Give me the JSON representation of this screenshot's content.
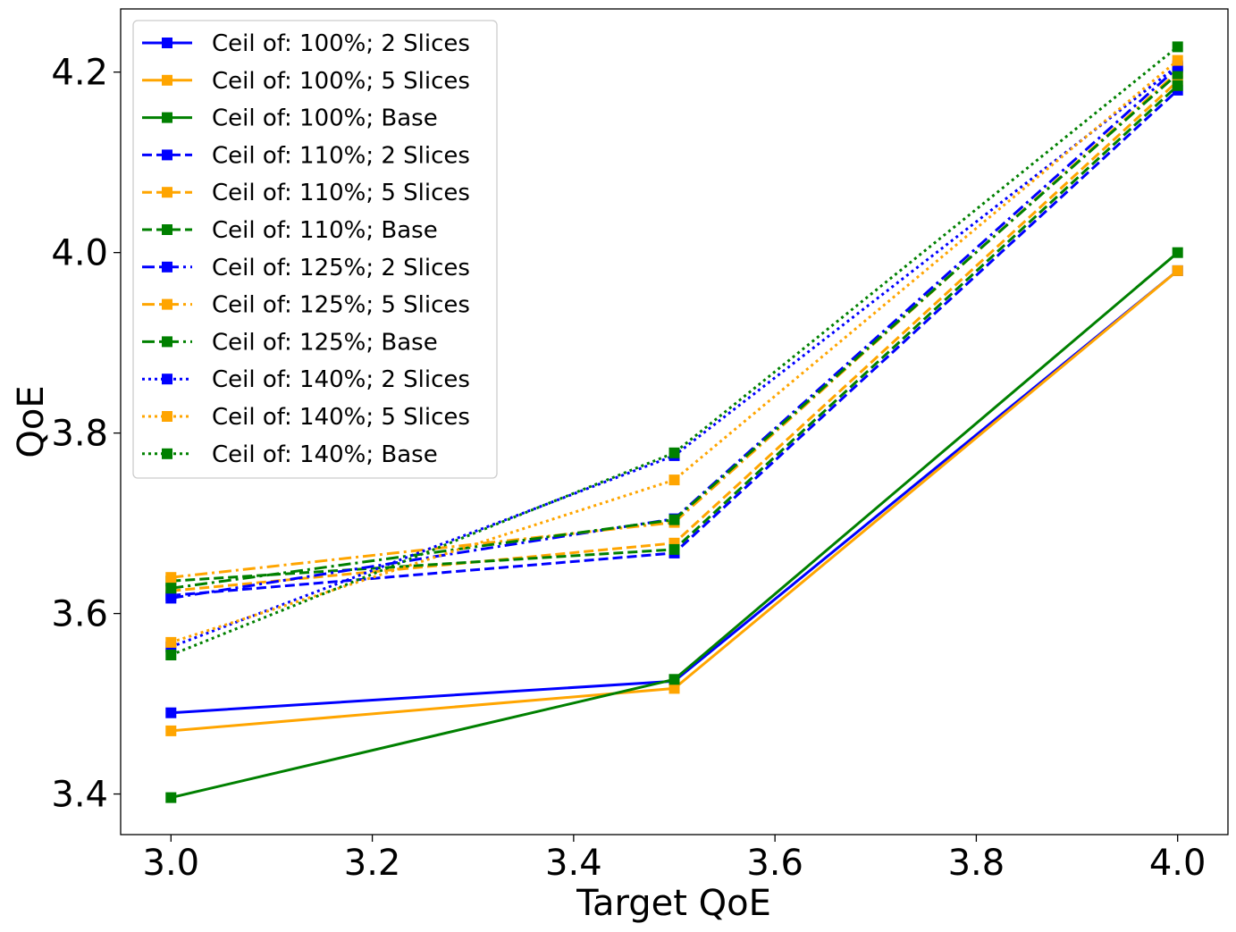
{
  "chart_data": {
    "type": "line",
    "xlabel": "Target QoE",
    "ylabel": "QoE",
    "xlim": [
      2.95,
      4.05
    ],
    "ylim": [
      3.355,
      4.27
    ],
    "xticks": [
      "3.0",
      "3.2",
      "3.4",
      "3.6",
      "3.8",
      "4.0"
    ],
    "yticks": [
      "3.4",
      "3.6",
      "3.8",
      "4.0",
      "4.2"
    ],
    "grid": false,
    "legend_position": "upper-left",
    "x": [
      3.0,
      3.5,
      4.0
    ],
    "series": [
      {
        "name": "Ceil of: 100%; 2 Slices",
        "color": "#0000ff",
        "linestyle": "solid",
        "marker": "square",
        "values": [
          3.49,
          3.525,
          3.98
        ]
      },
      {
        "name": "Ceil of: 100%; 5 Slices",
        "color": "#ffa500",
        "linestyle": "solid",
        "marker": "square",
        "values": [
          3.47,
          3.517,
          3.98
        ]
      },
      {
        "name": "Ceil of: 100%; Base",
        "color": "#008000",
        "linestyle": "solid",
        "marker": "square",
        "values": [
          3.396,
          3.527,
          4.0
        ]
      },
      {
        "name": "Ceil of: 110%; 2 Slices",
        "color": "#0000ff",
        "linestyle": "dashed",
        "marker": "square",
        "values": [
          3.62,
          3.667,
          4.18
        ]
      },
      {
        "name": "Ceil of: 110%; 5 Slices",
        "color": "#ffa500",
        "linestyle": "dashed",
        "marker": "square",
        "values": [
          3.625,
          3.678,
          4.19
        ]
      },
      {
        "name": "Ceil of: 110%; Base",
        "color": "#008000",
        "linestyle": "dashed",
        "marker": "square",
        "values": [
          3.636,
          3.671,
          4.185
        ]
      },
      {
        "name": "Ceil of: 125%; 2 Slices",
        "color": "#0000ff",
        "linestyle": "dashdot",
        "marker": "square",
        "values": [
          3.617,
          3.705,
          4.205
        ]
      },
      {
        "name": "Ceil of: 125%; 5 Slices",
        "color": "#ffa500",
        "linestyle": "dashdot",
        "marker": "square",
        "values": [
          3.64,
          3.701,
          4.2
        ]
      },
      {
        "name": "Ceil of: 125%; Base",
        "color": "#008000",
        "linestyle": "dashdot",
        "marker": "square",
        "values": [
          3.628,
          3.704,
          4.198
        ]
      },
      {
        "name": "Ceil of: 140%; 2 Slices",
        "color": "#0000ff",
        "linestyle": "dotted",
        "marker": "square",
        "values": [
          3.563,
          3.775,
          4.207
        ]
      },
      {
        "name": "Ceil of: 140%; 5 Slices",
        "color": "#ffa500",
        "linestyle": "dotted",
        "marker": "square",
        "values": [
          3.568,
          3.748,
          4.213
        ]
      },
      {
        "name": "Ceil of: 140%; Base",
        "color": "#008000",
        "linestyle": "dotted",
        "marker": "square",
        "values": [
          3.554,
          3.778,
          4.228
        ]
      }
    ]
  }
}
